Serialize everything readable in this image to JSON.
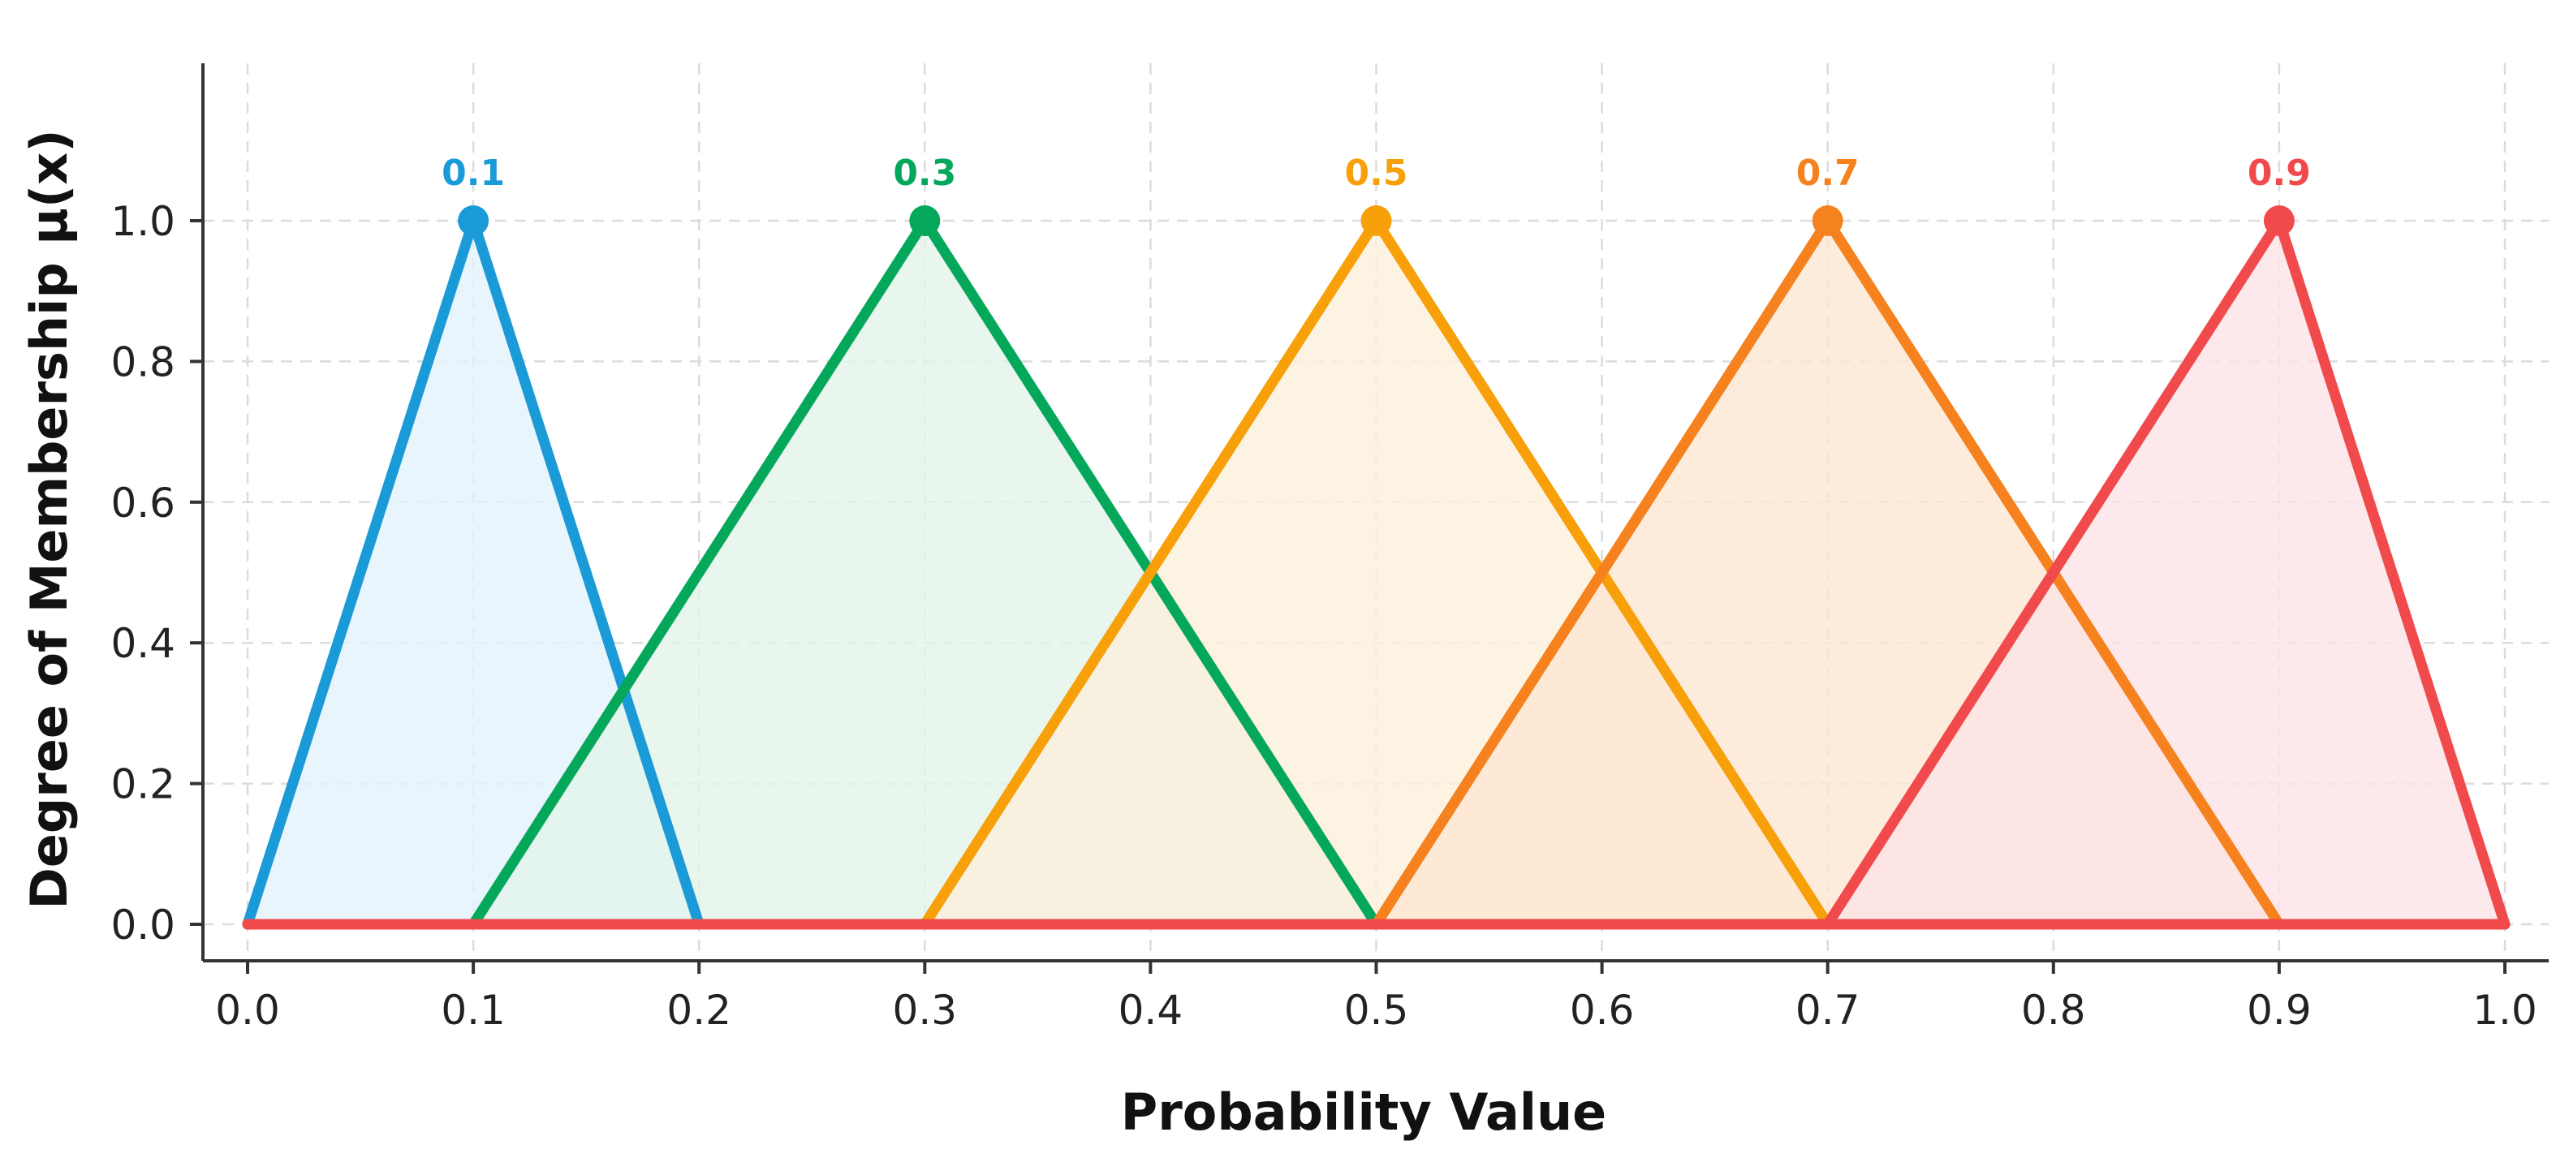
{
  "chart_data": {
    "type": "line",
    "title": "",
    "xlabel": "Probability Value",
    "ylabel": "Degree of Membership μ(x)",
    "xlim": [
      0.0,
      1.0
    ],
    "ylim": [
      0.0,
      1.2
    ],
    "x_ticks": [
      "0.0",
      "0.1",
      "0.2",
      "0.3",
      "0.4",
      "0.5",
      "0.6",
      "0.7",
      "0.8",
      "0.9",
      "1.0"
    ],
    "y_ticks": [
      "0.0",
      "0.2",
      "0.4",
      "0.6",
      "0.8",
      "1.0"
    ],
    "grid": true,
    "series": [
      {
        "label": "0.1",
        "color": "#1a9ad6",
        "fill": "#e4f2fb",
        "x": [
          0.0,
          0.1,
          0.2
        ],
        "y": [
          0,
          1,
          0
        ],
        "peak": [
          0.1,
          1
        ]
      },
      {
        "label": "0.3",
        "color": "#05a85a",
        "fill": "#e2f4ea",
        "x": [
          0.1,
          0.3,
          0.5
        ],
        "y": [
          0,
          1,
          0
        ],
        "peak": [
          0.3,
          1
        ]
      },
      {
        "label": "0.5",
        "color": "#f7a00a",
        "fill": "#fdf0dc",
        "x": [
          0.3,
          0.5,
          0.7
        ],
        "y": [
          0,
          1,
          0
        ],
        "peak": [
          0.5,
          1
        ]
      },
      {
        "label": "0.7",
        "color": "#f5821e",
        "fill": "#fde6d2",
        "x": [
          0.5,
          0.7,
          0.9
        ],
        "y": [
          0,
          1,
          0
        ],
        "peak": [
          0.7,
          1
        ]
      },
      {
        "label": "0.9",
        "color": "#f04a4c",
        "fill": "#fde4e6",
        "x": [
          0.7,
          0.9,
          1.0
        ],
        "y": [
          0,
          1,
          0
        ],
        "peak": [
          0.9,
          1
        ]
      }
    ]
  }
}
